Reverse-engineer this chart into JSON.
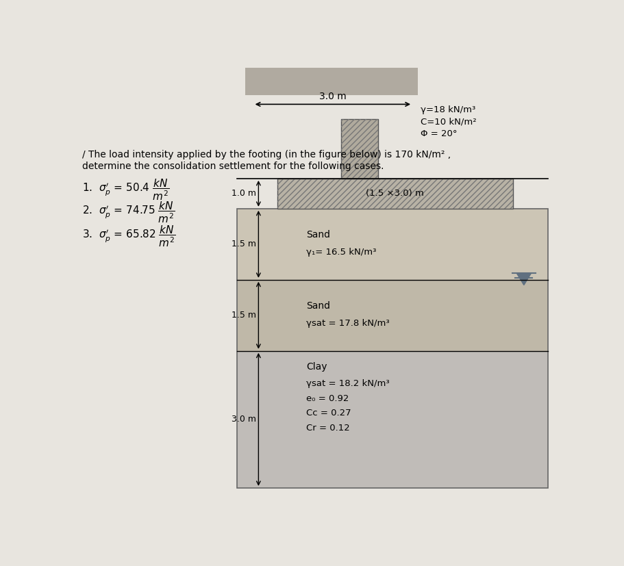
{
  "page_bg": "#e8e5df",
  "top_block_color": "#b0aaa0",
  "sand1_color": "#ccc5b5",
  "sand2_color": "#bfb8a8",
  "clay_color": "#c0bcb8",
  "footing_color": "#b8b2a5",
  "column_color": "#b0aa9d",
  "top_props": [
    "γ=18 kN/m³",
    "C=10 kN/m²",
    "Φ = 20°"
  ],
  "top_dim": "3.0 m",
  "footing_label": "(1.5 ×3.0) m",
  "layer1_soil": "Sand",
  "layer1_prop": "γ₁= 16.5 kN/m³",
  "layer2_soil": "Sand",
  "layer2_prop": "γsat = 17.8 kN/m³",
  "layer3_soil": "Clay",
  "layer3_props": [
    "γsat = 18.2 kN/m³",
    "e₀ = 0.92",
    "Cc = 0.27",
    "Cr = 0.12"
  ],
  "dim1": "1.0 m",
  "dim2": "1.5 m",
  "dim3": "1.5 m",
  "dim4": "3.0 m",
  "wt_color": "#607080"
}
